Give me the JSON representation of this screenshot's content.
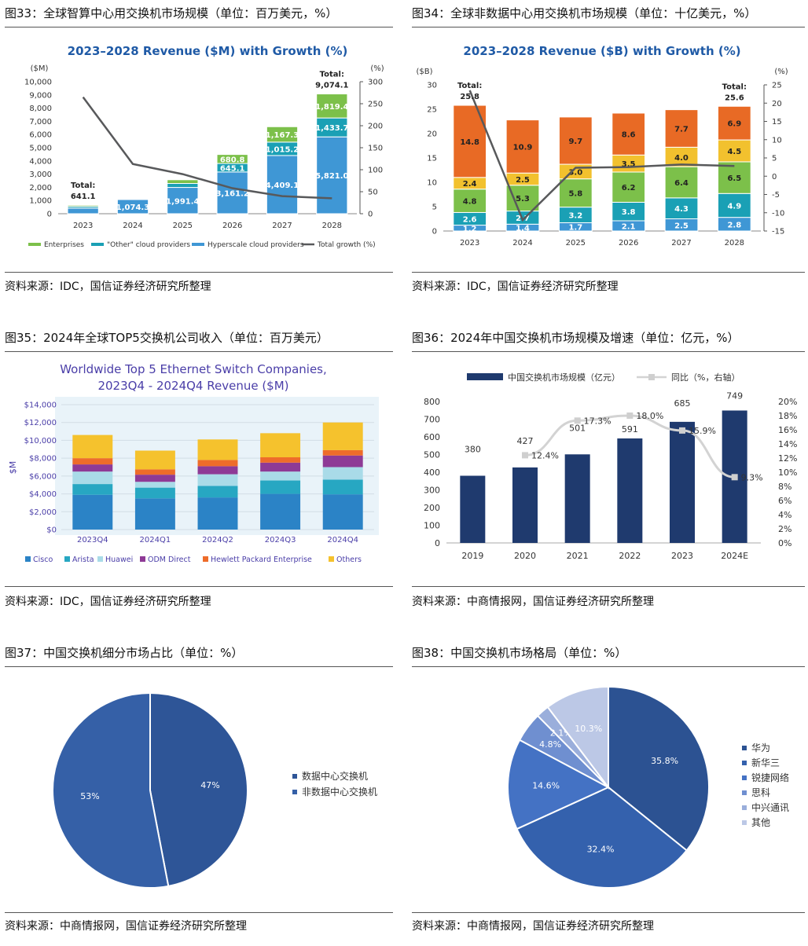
{
  "panels": {
    "p33": {
      "title": "图33：全球智算中心用交换机市场规模（单位：百万美元，%）",
      "source": "资料来源：IDC，国信证券经济研究所整理"
    },
    "p34": {
      "title": "图34：全球非数据中心用交换机市场规模（单位：十亿美元，%）",
      "source": "资料来源：IDC，国信证券经济研究所整理"
    },
    "p35": {
      "title": "图35：2024年全球TOP5交换机公司收入（单位：百万美元）",
      "source": "资料来源：IDC，国信证券经济研究所整理"
    },
    "p36": {
      "title": "图36：2024年中国交换机市场规模及增速（单位：亿元，%）",
      "source": "资料来源：中商情报网，国信证券经济研究所整理"
    },
    "p37": {
      "title": "图37：中国交换机细分市场占比（单位：%）",
      "source": "资料来源：中商情报网，国信证券经济研究所整理"
    },
    "p38": {
      "title": "图38：中国交换机市场格局（单位：%）",
      "source": "资料来源：中商情报网，国信证券经济研究所整理"
    }
  },
  "chart_data": [
    {
      "id": "c33",
      "type": "bar",
      "stacked": true,
      "title": "2023–2028 Revenue ($M) with Growth (%)",
      "ylabel_left": "($M)",
      "ylabel_right": "(%)",
      "categories": [
        "2023",
        "2024",
        "2025",
        "2026",
        "2027",
        "2028"
      ],
      "ylim": [
        0,
        10000
      ],
      "yticks": [
        "0",
        "1,000",
        "2,000",
        "3,000",
        "4,000",
        "5,000",
        "6,000",
        "7,000",
        "8,000",
        "9,000",
        "10,000"
      ],
      "y2lim": [
        0,
        300
      ],
      "y2ticks": [
        "0",
        "50",
        "100",
        "150",
        "200",
        "250",
        "300"
      ],
      "series": [
        {
          "name": "Hyperscale cloud providers",
          "color": "#3f97d5",
          "values": [
            420,
            1074.3,
            1991.4,
            3161.2,
            4409.1,
            5821.0
          ],
          "labels": [
            "",
            "1,074.3",
            "1,991.4",
            "3,161.2",
            "4,409.1",
            "5,821.0"
          ]
        },
        {
          "name": "\"Other\" cloud providers",
          "color": "#1aa0b5",
          "values": [
            130,
            60,
            300,
            645.1,
            1015.2,
            1433.7
          ],
          "labels": [
            "",
            "",
            "",
            "645.1",
            "1,015.2",
            "1,433.7"
          ]
        },
        {
          "name": "Enterprises",
          "color": "#7cc04a",
          "values": [
            91,
            20,
            280,
            680.8,
            1167.3,
            1819.4
          ],
          "labels": [
            "",
            "",
            "",
            "680.8",
            "1,167.3",
            "1,819.4"
          ]
        }
      ],
      "line": {
        "name": "Total growth (%)",
        "color": "#58595b",
        "values": [
          265,
          113,
          90,
          58,
          40,
          35
        ]
      },
      "annotations": [
        {
          "category": "2023",
          "text1": "Total:",
          "text2": "641.1"
        },
        {
          "category": "2028",
          "text1": "Total:",
          "text2": "9,074.1"
        }
      ]
    },
    {
      "id": "c34",
      "type": "bar",
      "stacked": true,
      "title": "2023–2028 Revenue ($B) with Growth (%)",
      "ylabel_left": "($B)",
      "ylabel_right": "(%)",
      "categories": [
        "2023",
        "2024",
        "2025",
        "2026",
        "2027",
        "2028"
      ],
      "ylim": [
        0,
        30
      ],
      "yticks": [
        "0",
        "5",
        "10",
        "15",
        "20",
        "25",
        "30"
      ],
      "y2lim": [
        -15,
        25
      ],
      "y2ticks": [
        "-15",
        "-10",
        "-5",
        "0",
        "5",
        "10",
        "15",
        "20",
        "25"
      ],
      "series": [
        {
          "name": "s1",
          "color": "#3f97d5",
          "values": [
            1.2,
            1.4,
            1.7,
            2.1,
            2.5,
            2.8
          ],
          "labels": [
            "1.2",
            "1.4",
            "1.7",
            "2.1",
            "2.5",
            "2.8"
          ]
        },
        {
          "name": "s2",
          "color": "#1aa0b5",
          "values": [
            2.6,
            2.7,
            3.2,
            3.8,
            4.3,
            4.9
          ],
          "labels": [
            "2.6",
            "2.7",
            "3.2",
            "3.8",
            "4.3",
            "4.9"
          ]
        },
        {
          "name": "s3",
          "color": "#7cc04a",
          "values": [
            4.8,
            5.3,
            5.8,
            6.2,
            6.4,
            6.5
          ],
          "labels": [
            "4.8",
            "5.3",
            "5.8",
            "6.2",
            "6.4",
            "6.5"
          ]
        },
        {
          "name": "s4",
          "color": "#f2c12e",
          "values": [
            2.4,
            2.5,
            3.0,
            3.5,
            4.0,
            4.5
          ],
          "labels": [
            "2.4",
            "2.5",
            "3.0",
            "3.5",
            "4.0",
            "4.5"
          ]
        },
        {
          "name": "s5",
          "color": "#e86a25",
          "values": [
            14.8,
            10.9,
            9.7,
            8.6,
            7.7,
            6.9
          ],
          "labels": [
            "14.8",
            "10.9",
            "9.7",
            "8.6",
            "7.7",
            "6.9"
          ]
        }
      ],
      "line": {
        "name": "growth",
        "color": "#58595b",
        "values": [
          23.5,
          -12,
          2.3,
          2.5,
          3.2,
          2.8
        ]
      },
      "annotations": [
        {
          "category": "2023",
          "text1": "Total:",
          "text2": "25.8"
        },
        {
          "category": "2028",
          "text1": "Total:",
          "text2": "25.6"
        }
      ]
    },
    {
      "id": "c35",
      "type": "bar",
      "stacked": true,
      "title": "Worldwide Top 5 Ethernet Switch Companies,",
      "subtitle": "2023Q4 - 2024Q4 Revenue ($M)",
      "ylabel": "$M",
      "categories": [
        "2023Q4",
        "2024Q1",
        "2024Q2",
        "2024Q3",
        "2024Q4"
      ],
      "ylim": [
        0,
        14000
      ],
      "yticks": [
        "$0",
        "$2,000",
        "$4,000",
        "$6,000",
        "$8,000",
        "$10,000",
        "$12,000",
        "$14,000"
      ],
      "series": [
        {
          "name": "Cisco",
          "color": "#2b83c6",
          "values": [
            3900,
            3500,
            3600,
            4000,
            3950
          ]
        },
        {
          "name": "Arista",
          "color": "#27a7c2",
          "values": [
            1200,
            1200,
            1300,
            1500,
            1650
          ]
        },
        {
          "name": "Huawei",
          "color": "#a9dbe8",
          "values": [
            1400,
            650,
            1300,
            1000,
            1400
          ]
        },
        {
          "name": "ODM Direct",
          "color": "#8e3a96",
          "values": [
            800,
            800,
            900,
            1000,
            1300
          ]
        },
        {
          "name": "Hewlett Packard Enterprise",
          "color": "#ee6c2a",
          "values": [
            700,
            600,
            700,
            600,
            600
          ]
        },
        {
          "name": "Others",
          "color": "#f5c22d",
          "values": [
            2600,
            2100,
            2300,
            2700,
            3100
          ]
        }
      ],
      "legend": "bottom"
    },
    {
      "id": "c36",
      "type": "bar",
      "categories": [
        "2019",
        "2020",
        "2021",
        "2022",
        "2023",
        "2024E"
      ],
      "ylim": [
        0,
        800
      ],
      "yticks": [
        "0",
        "100",
        "200",
        "300",
        "400",
        "500",
        "600",
        "700",
        "800"
      ],
      "y2lim": [
        0,
        20
      ],
      "y2ticks": [
        "0%",
        "2%",
        "4%",
        "6%",
        "8%",
        "10%",
        "12%",
        "14%",
        "16%",
        "18%",
        "20%"
      ],
      "series": [
        {
          "name": "中国交换机市场规模（亿元）",
          "color": "#1f3a6e",
          "values": [
            380,
            427,
            501,
            591,
            685,
            749
          ],
          "labels": [
            "380",
            "427",
            "501",
            "591",
            "685",
            "749"
          ]
        }
      ],
      "line": {
        "name": "同比（%，右轴）",
        "color": "#d3d3d3",
        "values": [
          null,
          12.4,
          17.3,
          18.0,
          15.9,
          9.3
        ],
        "labels": [
          "",
          "12.4%",
          "17.3%",
          "18.0%",
          "15.9%",
          "9.3%"
        ]
      },
      "legend": "top"
    },
    {
      "id": "c37",
      "type": "pie",
      "slices": [
        {
          "name": "数据中心交换机",
          "value": 47,
          "label": "47%",
          "color": "#2e5597"
        },
        {
          "name": "非数据中心交换机",
          "value": 53,
          "label": "53%",
          "color": "#3560a7"
        }
      ],
      "legend": "right"
    },
    {
      "id": "c38",
      "type": "pie",
      "slices": [
        {
          "name": "华为",
          "value": 35.8,
          "label": "35.8%",
          "color": "#2c5292"
        },
        {
          "name": "新华三",
          "value": 32.4,
          "label": "32.4%",
          "color": "#3461ad"
        },
        {
          "name": "锐捷网络",
          "value": 14.6,
          "label": "14.6%",
          "color": "#4472c4"
        },
        {
          "name": "思科",
          "value": 4.8,
          "label": "4.8%",
          "color": "#6f8fd0"
        },
        {
          "name": "中兴通讯",
          "value": 2.1,
          "label": "2.1%",
          "color": "#9aaedb"
        },
        {
          "name": "其他",
          "value": 10.3,
          "label": "10.3%",
          "color": "#bcc8e6"
        }
      ],
      "legend": "right"
    }
  ]
}
